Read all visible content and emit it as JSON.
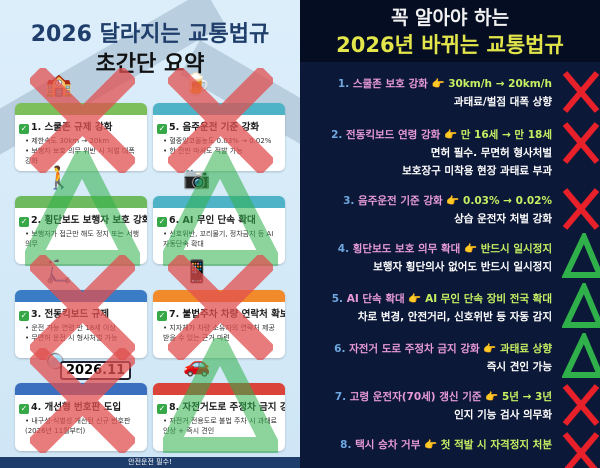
{
  "left": {
    "title_line1": "2026 달라지는 교통법규",
    "title_line2": "초간단 요약",
    "footer": "안전운전 필수!",
    "cards": [
      {
        "title": "1. 스쿨존 규제 강화",
        "bullets": [
          "• 제한속도 30km → 20km",
          "• 보행자 보호 의무 위반 시 처벌 대폭 강화"
        ],
        "header_color": "#7dbf5a",
        "mark": "x",
        "icon": "school-icon"
      },
      {
        "title": "5. 음주운전 기준 강화",
        "bullets": [
          "• 혈중알코올농도 0.03% → 0.02%",
          "• 한 잔만 마셔도 적발 가능"
        ],
        "header_color": "#4fb3c8",
        "mark": "x",
        "icon": "beer-icon"
      },
      {
        "title": "2. 횡단보도 보행자 보호 강화",
        "bullets": [
          "• 보행자가 접근만 해도 정지 또는 서행 의무"
        ],
        "header_color": "#6dbb5e",
        "mark": "triangle",
        "icon": "crosswalk-icon"
      },
      {
        "title": "6. AI 무인 단속 확대",
        "bullets": [
          "• 신호위반, 꼬리물기, 정차금지 등 AI 자동단속 확대"
        ],
        "header_color": "#4fb3c8",
        "mark": "triangle",
        "icon": "camera-icon"
      },
      {
        "title": "3. 전동킥보드 규제",
        "bullets": [
          "• 운전 가능 연령 만 18세 이상",
          "• 무면허 운전 시 형사처벌 가능"
        ],
        "header_color": "#3a7cc5",
        "mark": "x",
        "icon": "scooter-icon"
      },
      {
        "title": "7. 불법주차 차량 연락처 확보",
        "bullets": [
          "• 지자체가 차량 소유자의 연락처 제공받을 수 있는 근거 마련"
        ],
        "header_color": "#f08a2a",
        "mark": "x",
        "icon": "phone-icon"
      },
      {
        "title": "4. 개선형 번호판 도입",
        "bullets": [
          "• 내구성·식별성 개선된 신규 번호판(2026년 11월부터)"
        ],
        "header_color": "#3a6fc0",
        "mark": "x",
        "icon": "license-plate-icon",
        "plate": "2026.11"
      },
      {
        "title": "8. 자전거도로 주정차 금지 강화",
        "bullets": [
          "• 자전거 전용도로 불법 주차 시 과태료 인상 + 즉시 견인"
        ],
        "header_color": "#d9433a",
        "mark": "triangle",
        "icon": "tow-truck-icon"
      }
    ]
  },
  "right": {
    "title_line1": "꼭 알아야 하는",
    "title_line2": "2026년 바뀌는 교통법규",
    "items": [
      {
        "num": "1.",
        "topic": "스쿨존 보호 강화",
        "change": "30km/h → 20km/h",
        "sub": [
          "과태료/벌점 대폭 상향"
        ],
        "mark": "x"
      },
      {
        "num": "2.",
        "topic": "전동킥보드 연령 강화",
        "change": "만 16세 → 만 18세",
        "sub": [
          "면허 필수. 무면허 형사처벌",
          "보호장구 미착용 현장 과태료 부과"
        ],
        "mark": "x"
      },
      {
        "num": "3.",
        "topic": "음주운전 기준 강화",
        "change": "0.03% → 0.02%",
        "sub": [
          "상습 운전자 처벌 강화"
        ],
        "mark": "x"
      },
      {
        "num": "4.",
        "topic": "횡단보도 보호 의무 확대",
        "change": "반드시 일시정지",
        "sub": [
          "보행자 횡단의사 없어도 반드시 일시정지"
        ],
        "mark": "triangle"
      },
      {
        "num": "5.",
        "topic": "AI 단속 확대",
        "change": "AI 무인 단속 장비 전국 확대",
        "sub": [
          "차로 변경, 안전거리, 신호위반 등 자동 감지"
        ],
        "mark": "triangle"
      },
      {
        "num": "6.",
        "topic": "자전거 도로 주정차 금지 강화",
        "change": "과태료 상향",
        "sub": [
          "즉시 견인 가능"
        ],
        "mark": "triangle"
      },
      {
        "num": "7.",
        "topic": "고령 운전자(70세) 갱신 기준",
        "change": "5년 → 3년",
        "sub": [
          "인지 기능 검사 의무화"
        ],
        "mark": "x"
      },
      {
        "num": "8.",
        "topic": "택시 승차 거부",
        "change": "첫 적발 시 자격정지 처분",
        "sub": [],
        "mark": "x"
      }
    ],
    "pointer_icon": "pointing-hand-icon"
  },
  "colors": {
    "x_mark": "#e8202a",
    "left_x_mark": "#e05050",
    "triangle": "#2fb04a",
    "right_bg": "#0c1838",
    "right_title_yellow": "#e3e64a"
  }
}
